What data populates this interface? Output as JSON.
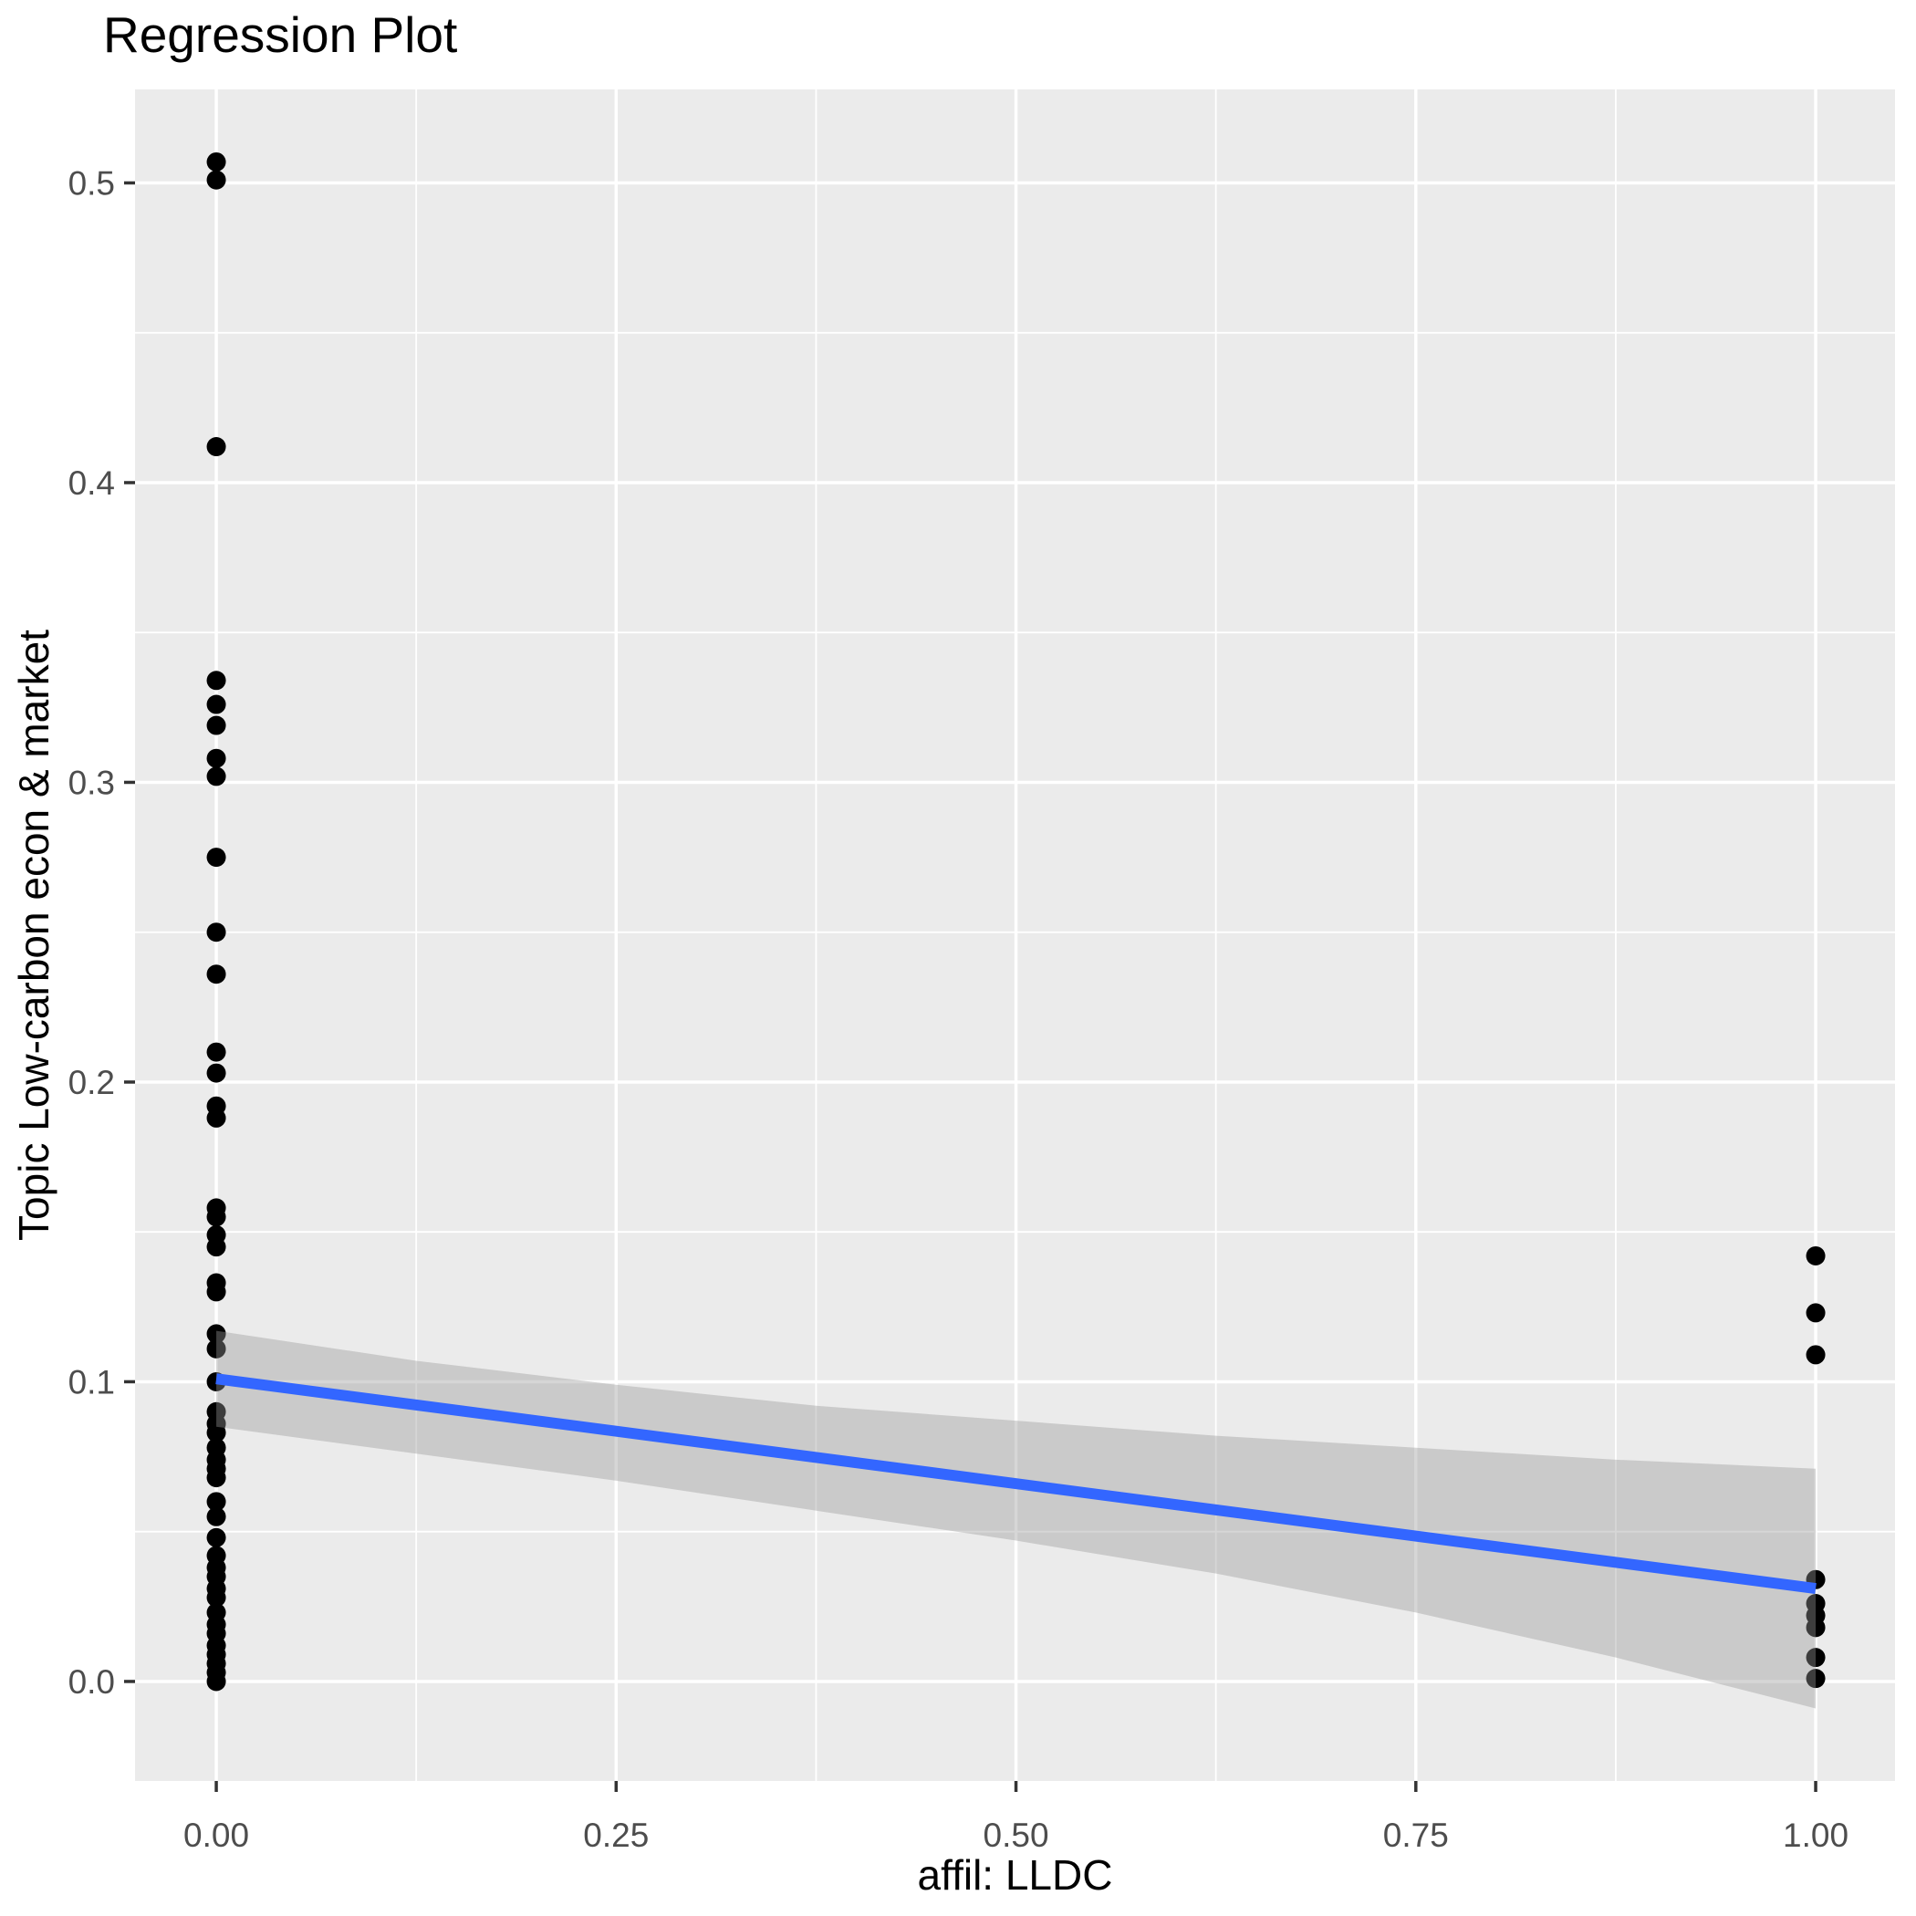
{
  "chart": {
    "title": "Regression Plot"
  },
  "chart_data": {
    "type": "scatter",
    "title": "Regression Plot",
    "xlabel": "affil: LLDC",
    "ylabel": "Topic Low-carbon econ & market",
    "legend": "none",
    "grid": "major+minor",
    "x_axis": {
      "ticks": [
        0,
        0.25,
        0.5,
        0.75,
        1
      ],
      "tick_labels": [
        "0.00",
        "0.25",
        "0.50",
        "0.75",
        "1.00"
      ],
      "range": [
        -0.0508,
        1.0496
      ]
    },
    "y_axis": {
      "ticks": [
        0,
        0.1,
        0.2,
        0.3,
        0.4,
        0.5
      ],
      "tick_labels": [
        "0.0",
        "0.1",
        "0.2",
        "0.3",
        "0.4",
        "0.5"
      ],
      "range": [
        -0.0332,
        0.5312
      ]
    },
    "series": [
      {
        "name": "observations at affil LLDC = 0",
        "x_value": 0,
        "y_values": [
          0.507,
          0.501,
          0.412,
          0.334,
          0.326,
          0.319,
          0.308,
          0.302,
          0.275,
          0.25,
          0.236,
          0.21,
          0.203,
          0.192,
          0.188,
          0.158,
          0.155,
          0.149,
          0.145,
          0.133,
          0.13,
          0.116,
          0.111,
          0.1,
          0.09,
          0.086,
          0.083,
          0.078,
          0.074,
          0.071,
          0.068,
          0.06,
          0.055,
          0.048,
          0.042,
          0.038,
          0.035,
          0.031,
          0.028,
          0.023,
          0.019,
          0.016,
          0.012,
          0.009,
          0.006,
          0.003,
          0.0
        ]
      },
      {
        "name": "observations at affil LLDC = 1",
        "x_value": 1,
        "y_values": [
          0.142,
          0.123,
          0.109,
          0.034,
          0.026,
          0.022,
          0.018,
          0.008,
          0.001
        ]
      }
    ],
    "regression_line": {
      "x": [
        0,
        1
      ],
      "y": [
        0.101,
        0.031
      ]
    },
    "confidence_band": {
      "x": [
        0,
        0.125,
        0.25,
        0.375,
        0.5,
        0.625,
        0.75,
        0.875,
        1
      ],
      "upper": [
        0.117,
        0.107,
        0.099,
        0.092,
        0.087,
        0.082,
        0.078,
        0.074,
        0.071
      ],
      "lower": [
        0.085,
        0.076,
        0.067,
        0.057,
        0.047,
        0.036,
        0.023,
        0.008,
        -0.009
      ]
    },
    "colors": {
      "point": "#000000",
      "line": "#3366FF",
      "band": "#999999",
      "band_opacity": 0.4,
      "panel_bg": "#EBEBEB",
      "grid": "#FFFFFF",
      "tick_label": "#4D4D4D",
      "tick_mark": "#333333",
      "axis_title": "#000000"
    }
  }
}
